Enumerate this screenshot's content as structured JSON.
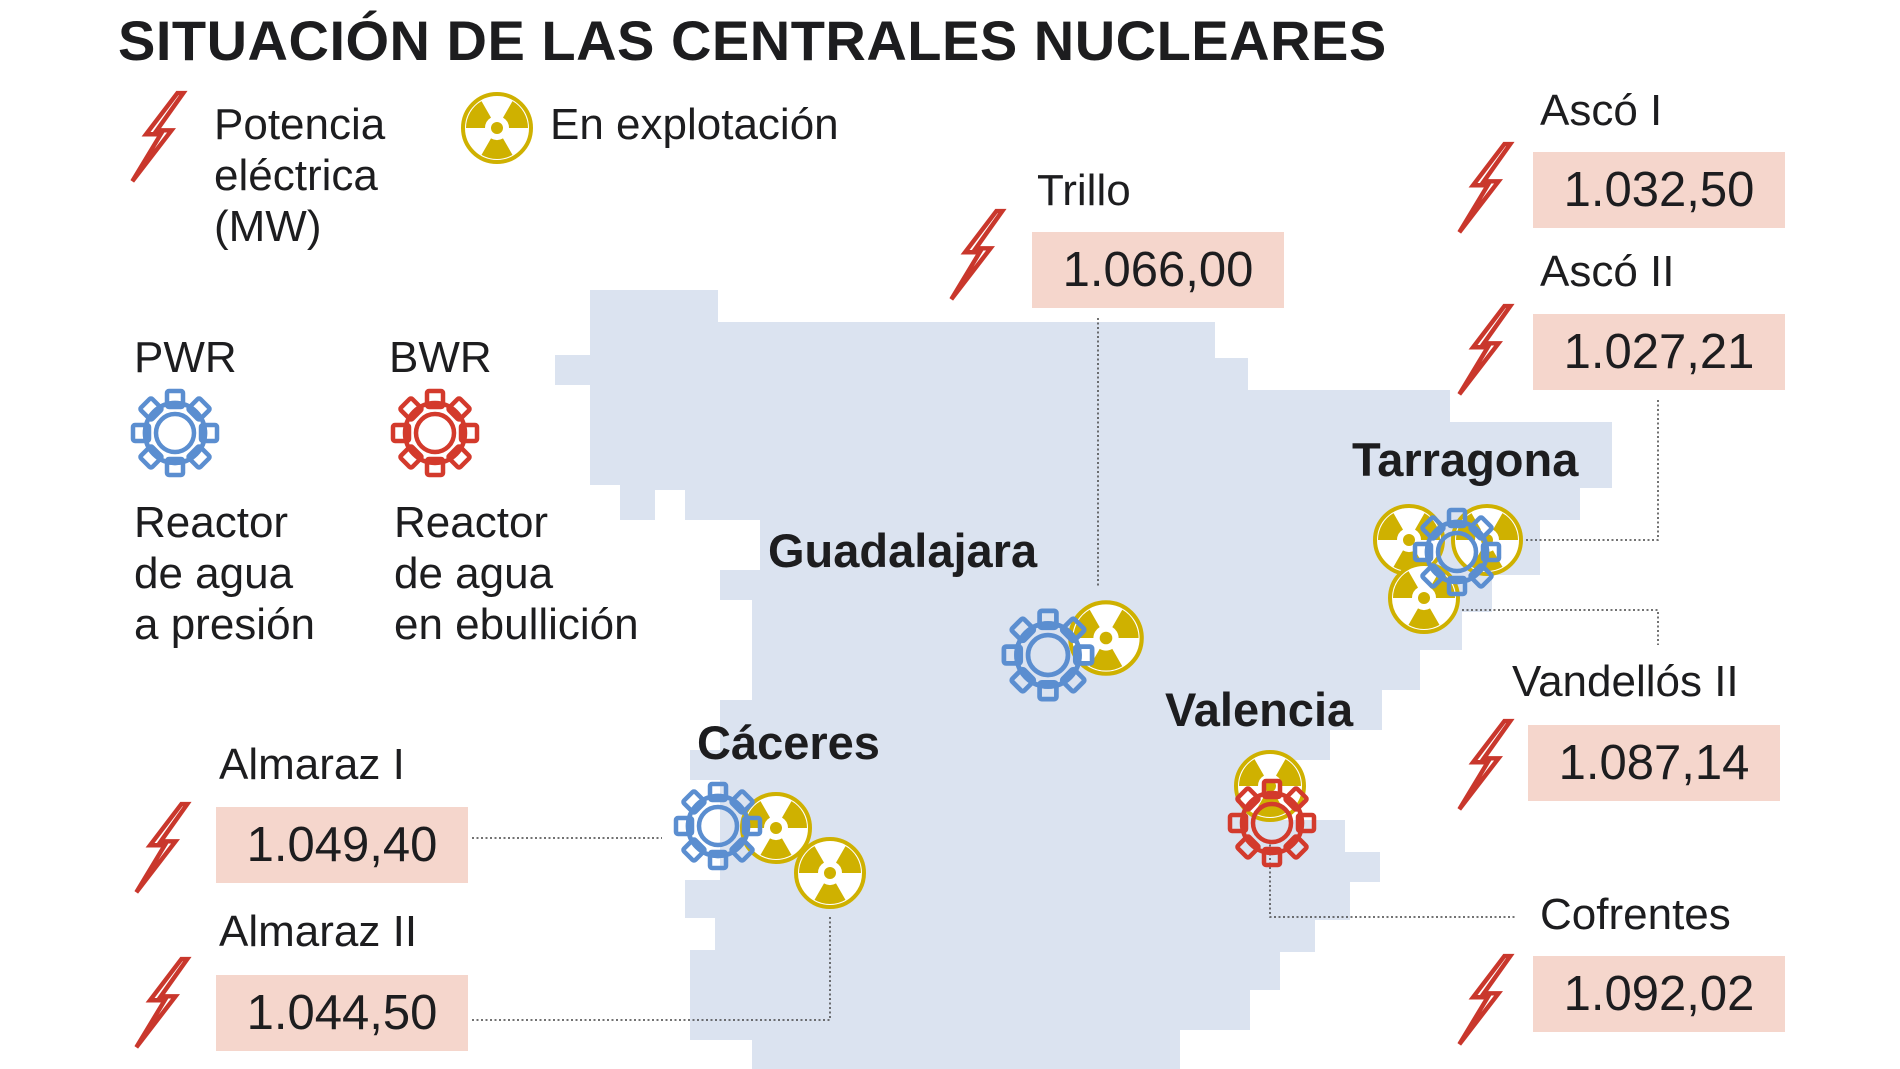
{
  "title": "SITUACIÓN DE LAS CENTRALES NUCLEARES",
  "legend": {
    "power_lines": [
      "Potencia",
      "eléctrica",
      "(MW)"
    ],
    "operation": "En explotación",
    "pwr": {
      "code": "PWR",
      "lines": [
        "Reactor",
        "de agua",
        "a presión"
      ]
    },
    "bwr": {
      "code": "BWR",
      "lines": [
        "Reactor",
        "de agua",
        "en ebullición"
      ]
    }
  },
  "cities": {
    "guadalajara": "Guadalajara",
    "tarragona": "Tarragona",
    "valencia": "Valencia",
    "caceres": "Cáceres"
  },
  "plants": {
    "trillo": {
      "name": "Trillo",
      "power": "1.066,00"
    },
    "asco1": {
      "name": "Ascó I",
      "power": "1.032,50"
    },
    "asco2": {
      "name": "Ascó II",
      "power": "1.027,21"
    },
    "vandellos2": {
      "name": "Vandellós II",
      "power": "1.087,14"
    },
    "cofrentes": {
      "name": "Cofrentes",
      "power": "1.092,02"
    },
    "almaraz1": {
      "name": "Almaraz I",
      "power": "1.049,40"
    },
    "almaraz2": {
      "name": "Almaraz II",
      "power": "1.044,50"
    }
  },
  "colors": {
    "map": "#dbe3f0",
    "value_box": "#f5d6cc",
    "pwr": "#5b8ed0",
    "bwr": "#d33a2c",
    "radiation": "#cfb100",
    "bolt": "#c9372c",
    "leader": "#444444"
  }
}
